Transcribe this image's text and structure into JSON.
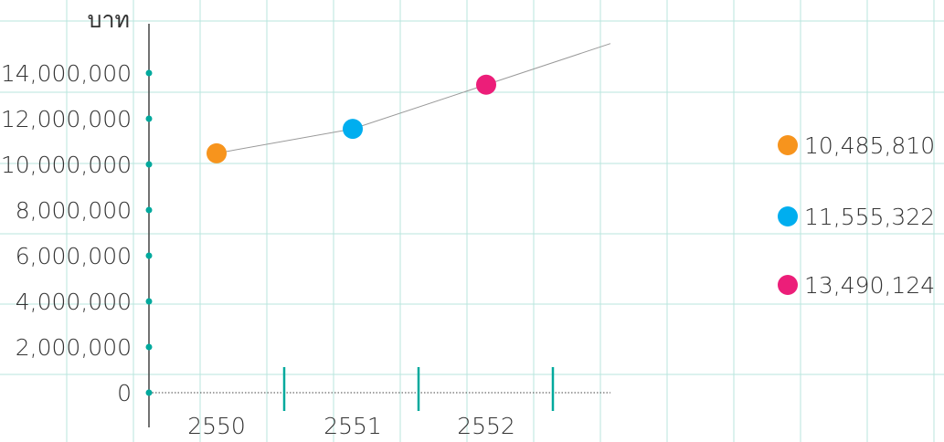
{
  "chart_data": {
    "type": "line",
    "ylabel": "บาท",
    "ylim": [
      0,
      14000000
    ],
    "yticks": [
      0,
      2000000,
      4000000,
      6000000,
      8000000,
      10000000,
      12000000,
      14000000
    ],
    "ytick_labels": [
      "0",
      "2,000,000",
      "4,000,000",
      "6,000,000",
      "8,000,000",
      "10,000,000",
      "12,000,000",
      "14,000,000"
    ],
    "categories": [
      "2550",
      "2551",
      "2552"
    ],
    "values": [
      10485810,
      11555322,
      13490124
    ],
    "point_colors": [
      "#f7941d",
      "#00aeef",
      "#ec1e79"
    ],
    "legend": {
      "placement": "right",
      "entries": [
        {
          "label": "10,485,810",
          "color": "#f7941d"
        },
        {
          "label": "11,555,322",
          "color": "#00aeef"
        },
        {
          "label": "13,490,124",
          "color": "#ec1e79"
        }
      ]
    },
    "grid": true,
    "colors": {
      "grid": "#b9e6de",
      "axis": "#444444",
      "tick_marker": "#00a99d",
      "line": "#999999",
      "text": "#333333"
    }
  }
}
